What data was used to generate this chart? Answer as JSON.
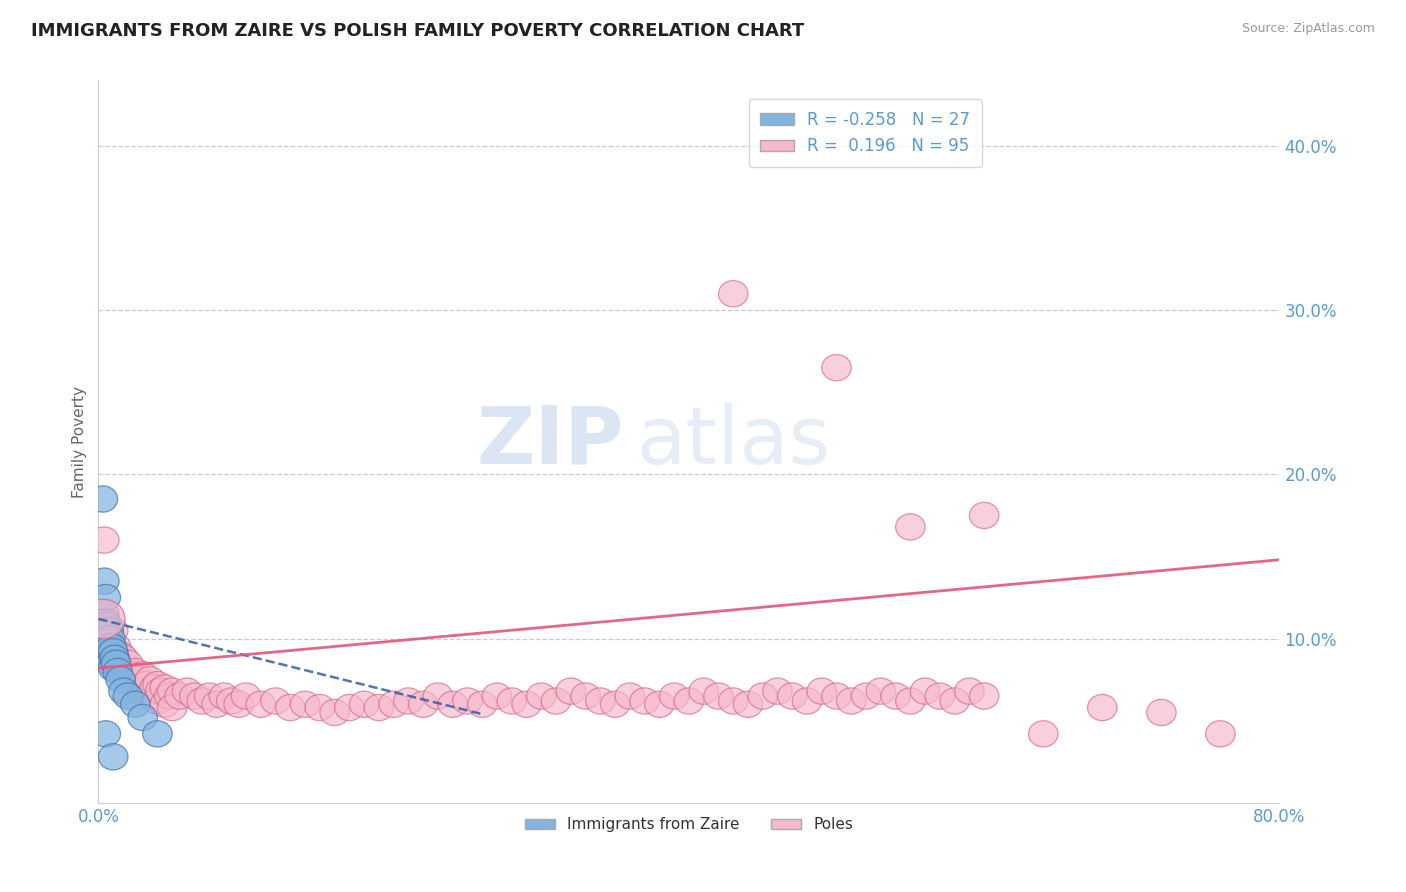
{
  "title": "IMMIGRANTS FROM ZAIRE VS POLISH FAMILY POVERTY CORRELATION CHART",
  "source_text": "Source: ZipAtlas.com",
  "ylabel": "Family Poverty",
  "xlim": [
    0.0,
    0.8
  ],
  "ylim": [
    0.0,
    0.44
  ],
  "yticks": [
    0.1,
    0.2,
    0.3,
    0.4
  ],
  "ytick_labels": [
    "10.0%",
    "20.0%",
    "30.0%",
    "40.0%"
  ],
  "blue_color": "#82b4e0",
  "blue_edge_color": "#4472a8",
  "pink_color": "#f5b8cc",
  "pink_edge_color": "#d96080",
  "blue_line_color": "#3060a0",
  "pink_line_color": "#e05878",
  "watermark_zip": "ZIP",
  "watermark_atlas": "atlas",
  "blue_points": [
    [
      0.003,
      0.185
    ],
    [
      0.004,
      0.135
    ],
    [
      0.004,
      0.115
    ],
    [
      0.005,
      0.125
    ],
    [
      0.005,
      0.11
    ],
    [
      0.005,
      0.1
    ],
    [
      0.006,
      0.108
    ],
    [
      0.006,
      0.098
    ],
    [
      0.007,
      0.105
    ],
    [
      0.007,
      0.095
    ],
    [
      0.008,
      0.1
    ],
    [
      0.008,
      0.09
    ],
    [
      0.009,
      0.095
    ],
    [
      0.009,
      0.085
    ],
    [
      0.01,
      0.092
    ],
    [
      0.01,
      0.082
    ],
    [
      0.011,
      0.088
    ],
    [
      0.012,
      0.085
    ],
    [
      0.013,
      0.08
    ],
    [
      0.015,
      0.075
    ],
    [
      0.017,
      0.068
    ],
    [
      0.02,
      0.065
    ],
    [
      0.025,
      0.06
    ],
    [
      0.03,
      0.052
    ],
    [
      0.04,
      0.042
    ],
    [
      0.005,
      0.042
    ],
    [
      0.01,
      0.028
    ]
  ],
  "pink_points": [
    [
      0.004,
      0.16
    ],
    [
      0.005,
      0.11
    ],
    [
      0.007,
      0.105
    ],
    [
      0.008,
      0.098
    ],
    [
      0.009,
      0.092
    ],
    [
      0.01,
      0.105
    ],
    [
      0.012,
      0.095
    ],
    [
      0.015,
      0.09
    ],
    [
      0.015,
      0.082
    ],
    [
      0.017,
      0.088
    ],
    [
      0.018,
      0.08
    ],
    [
      0.02,
      0.085
    ],
    [
      0.02,
      0.075
    ],
    [
      0.022,
      0.078
    ],
    [
      0.025,
      0.08
    ],
    [
      0.025,
      0.072
    ],
    [
      0.027,
      0.075
    ],
    [
      0.03,
      0.078
    ],
    [
      0.03,
      0.068
    ],
    [
      0.032,
      0.072
    ],
    [
      0.035,
      0.075
    ],
    [
      0.035,
      0.065
    ],
    [
      0.038,
      0.07
    ],
    [
      0.04,
      0.072
    ],
    [
      0.04,
      0.062
    ],
    [
      0.042,
      0.068
    ],
    [
      0.045,
      0.07
    ],
    [
      0.045,
      0.06
    ],
    [
      0.048,
      0.065
    ],
    [
      0.05,
      0.068
    ],
    [
      0.05,
      0.058
    ],
    [
      0.055,
      0.065
    ],
    [
      0.06,
      0.068
    ],
    [
      0.065,
      0.065
    ],
    [
      0.07,
      0.062
    ],
    [
      0.075,
      0.065
    ],
    [
      0.08,
      0.06
    ],
    [
      0.085,
      0.065
    ],
    [
      0.09,
      0.062
    ],
    [
      0.095,
      0.06
    ],
    [
      0.1,
      0.065
    ],
    [
      0.11,
      0.06
    ],
    [
      0.12,
      0.062
    ],
    [
      0.13,
      0.058
    ],
    [
      0.14,
      0.06
    ],
    [
      0.15,
      0.058
    ],
    [
      0.16,
      0.055
    ],
    [
      0.17,
      0.058
    ],
    [
      0.18,
      0.06
    ],
    [
      0.19,
      0.058
    ],
    [
      0.2,
      0.06
    ],
    [
      0.21,
      0.062
    ],
    [
      0.22,
      0.06
    ],
    [
      0.23,
      0.065
    ],
    [
      0.24,
      0.06
    ],
    [
      0.25,
      0.062
    ],
    [
      0.26,
      0.06
    ],
    [
      0.27,
      0.065
    ],
    [
      0.28,
      0.062
    ],
    [
      0.29,
      0.06
    ],
    [
      0.3,
      0.065
    ],
    [
      0.31,
      0.062
    ],
    [
      0.32,
      0.068
    ],
    [
      0.33,
      0.065
    ],
    [
      0.34,
      0.062
    ],
    [
      0.35,
      0.06
    ],
    [
      0.36,
      0.065
    ],
    [
      0.37,
      0.062
    ],
    [
      0.38,
      0.06
    ],
    [
      0.39,
      0.065
    ],
    [
      0.4,
      0.062
    ],
    [
      0.41,
      0.068
    ],
    [
      0.42,
      0.065
    ],
    [
      0.43,
      0.062
    ],
    [
      0.44,
      0.06
    ],
    [
      0.45,
      0.065
    ],
    [
      0.46,
      0.068
    ],
    [
      0.47,
      0.065
    ],
    [
      0.48,
      0.062
    ],
    [
      0.49,
      0.068
    ],
    [
      0.5,
      0.065
    ],
    [
      0.51,
      0.062
    ],
    [
      0.52,
      0.065
    ],
    [
      0.53,
      0.068
    ],
    [
      0.54,
      0.065
    ],
    [
      0.55,
      0.062
    ],
    [
      0.56,
      0.068
    ],
    [
      0.57,
      0.065
    ],
    [
      0.58,
      0.062
    ],
    [
      0.59,
      0.068
    ],
    [
      0.6,
      0.065
    ],
    [
      0.55,
      0.168
    ],
    [
      0.6,
      0.175
    ],
    [
      0.43,
      0.31
    ],
    [
      0.5,
      0.265
    ],
    [
      0.64,
      0.042
    ],
    [
      0.68,
      0.058
    ],
    [
      0.72,
      0.055
    ],
    [
      0.76,
      0.042
    ]
  ],
  "blue_line": {
    "x0": 0.0,
    "y0": 0.112,
    "x1": 0.26,
    "y1": 0.054
  },
  "pink_line": {
    "x0": 0.0,
    "y0": 0.082,
    "x1": 0.8,
    "y1": 0.148
  }
}
